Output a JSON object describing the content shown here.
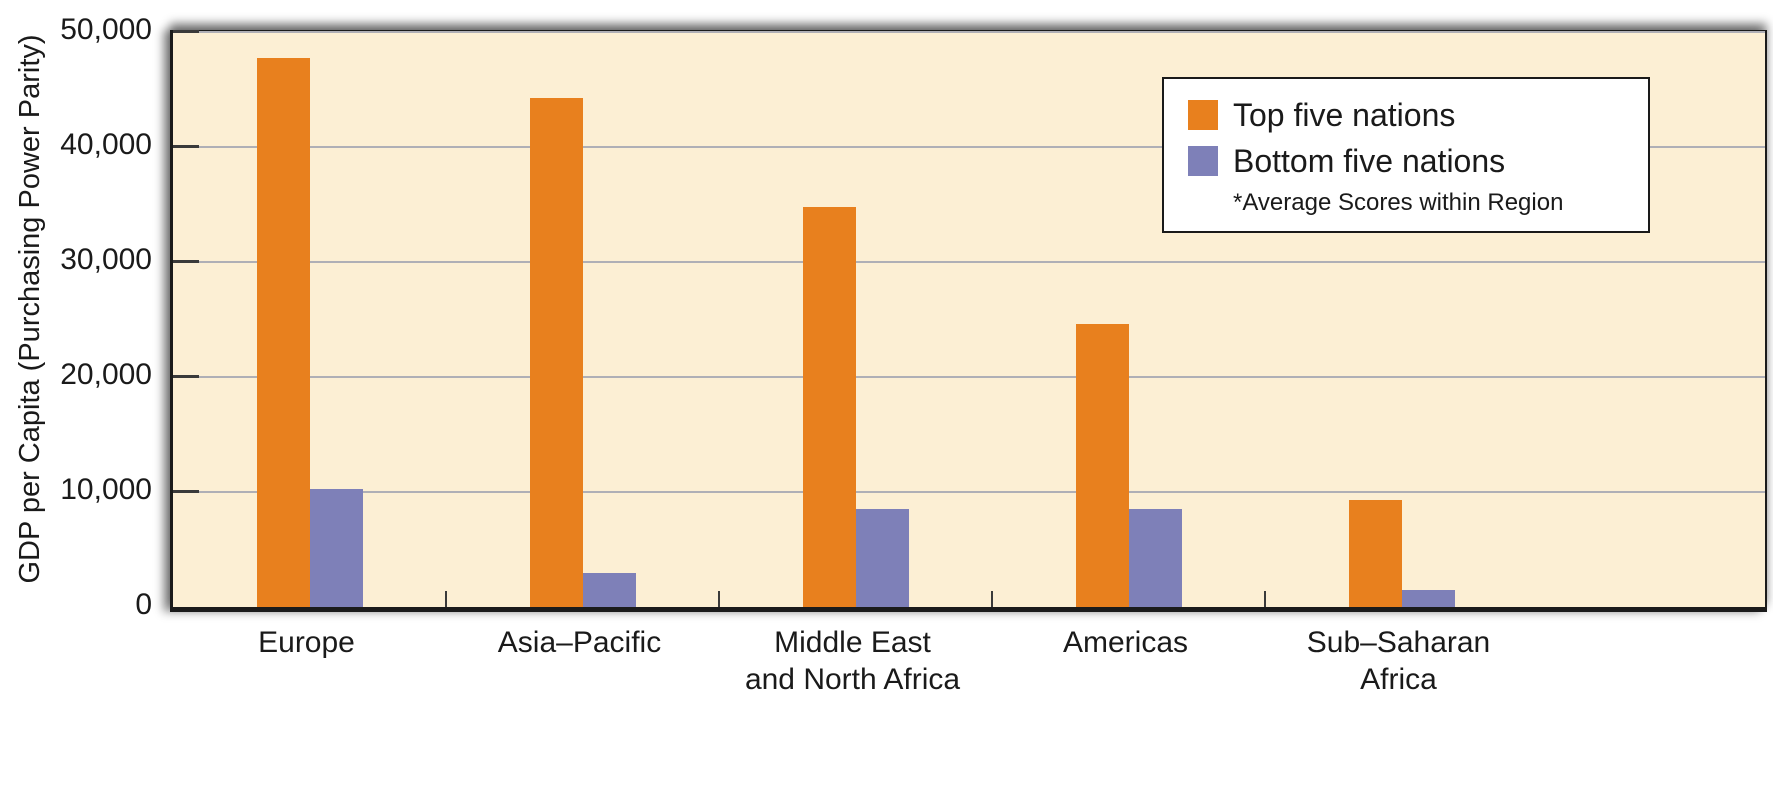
{
  "chart_data": {
    "type": "bar",
    "title": "",
    "xlabel": "",
    "ylabel": "GDP per Capita (Purchasing Power Parity)",
    "categories": [
      "Europe",
      "Asia–Pacific",
      "Middle East and North Africa",
      "Americas",
      "Sub–Saharan Africa"
    ],
    "category_label_lines": [
      "Europe",
      "Asia–Pacific",
      "Middle East\nand North Africa",
      "Americas",
      "Sub–Saharan\nAfrica"
    ],
    "series": [
      {
        "name": "Top five nations",
        "color": "#E8801E",
        "values": [
          47700,
          44300,
          34800,
          24600,
          9300
        ]
      },
      {
        "name": "Bottom five nations",
        "color": "#7E80B8",
        "values": [
          10300,
          3000,
          8500,
          8500,
          1500
        ]
      }
    ],
    "ylim": [
      0,
      50000
    ],
    "ytick_step": 10000,
    "ytick_labels": [
      "0",
      "10,000",
      "20,000",
      "30,000",
      "40,000",
      "50,000"
    ],
    "grid": true,
    "legend_position": "top-right",
    "legend_note": "*Average Scores within Region"
  },
  "colors": {
    "plot_background": "#FCEFD4",
    "gridline": "#AFAFB6",
    "axis": "#1B1B1B",
    "top_five": "#E8801E",
    "bottom_five": "#7E80B8"
  }
}
